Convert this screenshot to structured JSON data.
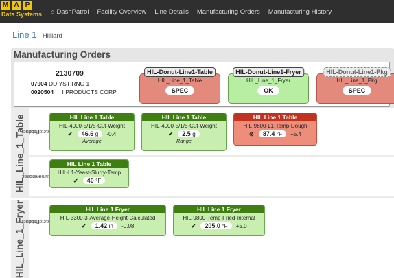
{
  "logo": {
    "letters": [
      "M",
      "A",
      "P"
    ],
    "subtitle": "Data Systems"
  },
  "nav": {
    "items": [
      "DashPatrol",
      "Facility Overview",
      "Line Details",
      "Manufacturing Orders",
      "Manufacturing History"
    ]
  },
  "page": {
    "title": "Line 1",
    "subtitle": "Hilliard"
  },
  "manufacturing_orders": {
    "title": "Manufacturing Orders",
    "order": {
      "id": "2130709",
      "line1_code": "07904",
      "line1_text": "DD YST RNG 1",
      "line2_code": "0020504",
      "line2_text": "I PRODUCTS CORP"
    },
    "stations": [
      {
        "tab": "HIL-Donut-Line1-Table",
        "name": "HIL_Line_1_Table",
        "status": "SPEC",
        "color": "#e48a7c"
      },
      {
        "tab": "HIL-Donut-Line1-Fryer",
        "name": "HIL_Line_1_Fryer",
        "status": "OK",
        "color": "#b8eea2"
      },
      {
        "tab": "HIL-Donut-Line1-Pkg",
        "name": "HIL_Line_1_Pkg",
        "status": "SPEC",
        "color": "#e48a7c"
      }
    ]
  },
  "equipment": [
    {
      "name": "HIL_Line_1_Table",
      "groups": [
        {
          "label_line1": "Product",
          "label_line2": "Characteristics",
          "cards": [
            {
              "header": "HIL Line 1 Table",
              "desc": "HIL-4000-5/1/5-Cut-Weight",
              "status_icon": "check-icon",
              "mark": "✔",
              "value": "46.6",
              "unit": "g",
              "delta": "-0.4",
              "note": "Average",
              "state": "ok"
            },
            {
              "header": "HIL Line 1 Table",
              "desc": "HIL-4000-5/1/5-Cut-Weight",
              "status_icon": "check-icon",
              "mark": "✔",
              "value": "2.5",
              "unit": "g",
              "delta": "",
              "note": "Range",
              "state": "ok"
            },
            {
              "header": "HIL Line 1 Table",
              "desc": "HIL-9800-L1-Temp-Dough",
              "status_icon": "prohibited-icon",
              "mark": "⊘",
              "value": "87.4",
              "unit": "°F",
              "delta": "+5.4",
              "note": "",
              "state": "alarm"
            }
          ]
        },
        {
          "label_line1": "Process",
          "label_line2": "Parameters",
          "cards": [
            {
              "header": "HIL Line 1 Table",
              "desc": "HIL-L1-Yeast-Slurry-Temp",
              "status_icon": "check-icon",
              "mark": "✔",
              "value": "40",
              "unit": "°F",
              "delta": "",
              "note": "",
              "state": "ok"
            }
          ]
        }
      ]
    },
    {
      "name": "HIL_Line_1_Fryer",
      "groups": [
        {
          "label_line1": "Product",
          "label_line2": "Characteristics",
          "cards": [
            {
              "header": "HIL Line 1 Fryer",
              "desc": "HIL-3300-3-Average-Height-Calculated",
              "status_icon": "check-icon",
              "mark": "✔",
              "value": "1.42",
              "unit": "in",
              "delta": "-0.08",
              "note": "",
              "state": "ok"
            },
            {
              "header": "HIL Line 1 Fryer",
              "desc": "HIL-9800-Temp-Fried-Internal",
              "status_icon": "check-icon",
              "mark": "✔",
              "value": "205.0",
              "unit": "°F",
              "delta": "+5.0",
              "note": "",
              "state": "ok"
            }
          ]
        }
      ]
    }
  ],
  "colors": {
    "navbar": "#2f2f2f",
    "logo": "#f2c500",
    "link_blue": "#3d7fc1",
    "ok_green": "#3f7f12",
    "alarm_red": "#c2331f"
  }
}
